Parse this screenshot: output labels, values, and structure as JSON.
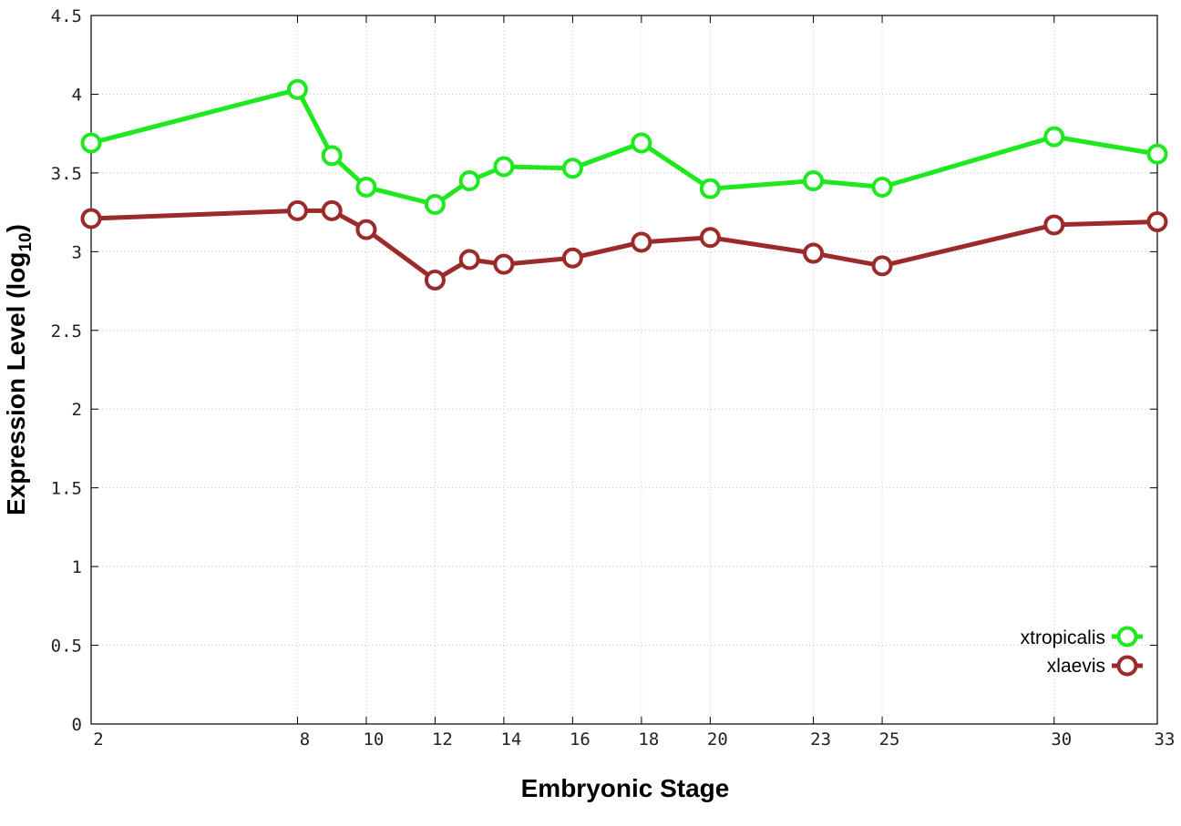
{
  "chart_data": {
    "type": "line",
    "xlabel": "Embryonic Stage",
    "ylabel_main": "Expression Level (log",
    "ylabel_sub": "10",
    "ylabel_close": ")",
    "x_ticks": [
      2,
      8,
      10,
      12,
      14,
      16,
      18,
      20,
      23,
      25,
      30,
      33
    ],
    "y_ticks": [
      0,
      0.5,
      1,
      1.5,
      2,
      2.5,
      3,
      3.5,
      4,
      4.5
    ],
    "xlim": [
      2,
      33
    ],
    "ylim": [
      0,
      4.5
    ],
    "grid": true,
    "legend_position": "bottom-right",
    "x": [
      2,
      8,
      9,
      10,
      12,
      13,
      14,
      16,
      18,
      20,
      23,
      25,
      30,
      33
    ],
    "series": [
      {
        "name": "xtropicalis",
        "color": "#1ee81e",
        "values": [
          3.69,
          4.03,
          3.61,
          3.41,
          3.3,
          3.45,
          3.54,
          3.53,
          3.69,
          3.4,
          3.45,
          3.41,
          3.73,
          3.62
        ]
      },
      {
        "name": "xlaevis",
        "color": "#9b2a2a",
        "values": [
          3.21,
          3.26,
          3.26,
          3.14,
          2.82,
          2.95,
          2.92,
          2.96,
          3.06,
          3.09,
          2.99,
          2.91,
          3.17,
          3.19
        ]
      }
    ]
  }
}
